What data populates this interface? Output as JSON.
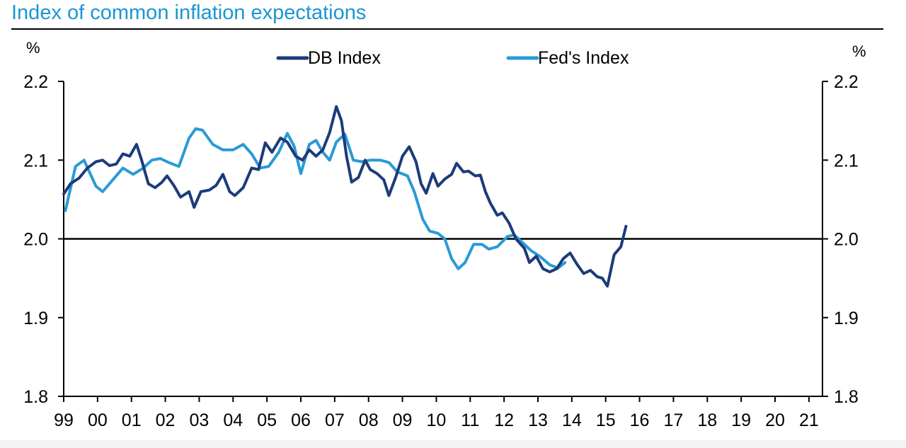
{
  "chart_data": {
    "type": "line",
    "title": "Index of common inflation expectations",
    "left_unit": "%",
    "right_unit": "%",
    "xlim": [
      1999.0,
      2021.4
    ],
    "ylim": [
      1.8,
      2.2
    ],
    "y_ticks": [
      {
        "value": 2.2,
        "label": "2.2"
      },
      {
        "value": 2.1,
        "label": "2.1"
      },
      {
        "value": 2.0,
        "label": "2.0"
      },
      {
        "value": 1.9,
        "label": "1.9"
      },
      {
        "value": 1.8,
        "label": "1.8"
      }
    ],
    "x_ticks": [
      {
        "value": 1999.0,
        "label": "99"
      },
      {
        "value": 2000.0,
        "label": "00"
      },
      {
        "value": 2001.0,
        "label": "01"
      },
      {
        "value": 2002.0,
        "label": "02"
      },
      {
        "value": 2003.0,
        "label": "03"
      },
      {
        "value": 2004.0,
        "label": "04"
      },
      {
        "value": 2005.0,
        "label": "05"
      },
      {
        "value": 2006.0,
        "label": "06"
      },
      {
        "value": 2007.0,
        "label": "07"
      },
      {
        "value": 2008.0,
        "label": "08"
      },
      {
        "value": 2009.0,
        "label": "09"
      },
      {
        "value": 2010.0,
        "label": "10"
      },
      {
        "value": 2011.0,
        "label": "11"
      },
      {
        "value": 2012.0,
        "label": "12"
      },
      {
        "value": 2013.0,
        "label": "13"
      },
      {
        "value": 2014.0,
        "label": "14"
      },
      {
        "value": 2015.0,
        "label": "15"
      },
      {
        "value": 2016.0,
        "label": "16"
      },
      {
        "value": 2017.0,
        "label": "17"
      },
      {
        "value": 2018.0,
        "label": "18"
      },
      {
        "value": 2019.0,
        "label": "19"
      },
      {
        "value": 2020.0,
        "label": "20"
      },
      {
        "value": 2021.0,
        "label": "21"
      }
    ],
    "reference_line": 2.0,
    "series": [
      {
        "name": "DB Index",
        "color": "#1c3b7a",
        "points": [
          [
            1999.0,
            2.057
          ],
          [
            1999.2,
            2.07
          ],
          [
            1999.45,
            2.077
          ],
          [
            1999.7,
            2.09
          ],
          [
            1999.95,
            2.098
          ],
          [
            2000.15,
            2.1
          ],
          [
            2000.35,
            2.093
          ],
          [
            2000.55,
            2.095
          ],
          [
            2000.75,
            2.108
          ],
          [
            2000.95,
            2.105
          ],
          [
            2001.15,
            2.12
          ],
          [
            2001.3,
            2.1
          ],
          [
            2001.5,
            2.07
          ],
          [
            2001.7,
            2.065
          ],
          [
            2001.9,
            2.072
          ],
          [
            2002.05,
            2.08
          ],
          [
            2002.25,
            2.068
          ],
          [
            2002.45,
            2.053
          ],
          [
            2002.7,
            2.06
          ],
          [
            2002.85,
            2.04
          ],
          [
            2003.05,
            2.06
          ],
          [
            2003.3,
            2.062
          ],
          [
            2003.5,
            2.068
          ],
          [
            2003.7,
            2.082
          ],
          [
            2003.9,
            2.06
          ],
          [
            2004.05,
            2.055
          ],
          [
            2004.3,
            2.065
          ],
          [
            2004.55,
            2.09
          ],
          [
            2004.75,
            2.088
          ],
          [
            2004.95,
            2.122
          ],
          [
            2005.15,
            2.11
          ],
          [
            2005.4,
            2.128
          ],
          [
            2005.6,
            2.123
          ],
          [
            2005.85,
            2.105
          ],
          [
            2006.05,
            2.1
          ],
          [
            2006.25,
            2.113
          ],
          [
            2006.45,
            2.105
          ],
          [
            2006.65,
            2.113
          ],
          [
            2006.85,
            2.135
          ],
          [
            2007.05,
            2.168
          ],
          [
            2007.2,
            2.15
          ],
          [
            2007.35,
            2.105
          ],
          [
            2007.5,
            2.072
          ],
          [
            2007.7,
            2.078
          ],
          [
            2007.9,
            2.1
          ],
          [
            2008.05,
            2.088
          ],
          [
            2008.25,
            2.083
          ],
          [
            2008.45,
            2.075
          ],
          [
            2008.6,
            2.055
          ],
          [
            2008.8,
            2.078
          ],
          [
            2009.0,
            2.105
          ],
          [
            2009.2,
            2.117
          ],
          [
            2009.4,
            2.098
          ],
          [
            2009.55,
            2.07
          ],
          [
            2009.7,
            2.058
          ],
          [
            2009.9,
            2.083
          ],
          [
            2010.05,
            2.067
          ],
          [
            2010.25,
            2.076
          ],
          [
            2010.45,
            2.082
          ],
          [
            2010.6,
            2.096
          ],
          [
            2010.8,
            2.085
          ],
          [
            2010.95,
            2.086
          ],
          [
            2011.15,
            2.08
          ],
          [
            2011.3,
            2.081
          ],
          [
            2011.45,
            2.06
          ],
          [
            2011.6,
            2.045
          ],
          [
            2011.8,
            2.03
          ],
          [
            2011.95,
            2.033
          ],
          [
            2012.15,
            2.02
          ],
          [
            2012.35,
            2.0
          ],
          [
            2012.6,
            1.988
          ],
          [
            2012.75,
            1.97
          ],
          [
            2012.95,
            1.978
          ],
          [
            2013.15,
            1.962
          ],
          [
            2013.35,
            1.958
          ],
          [
            2013.55,
            1.962
          ],
          [
            2013.75,
            1.975
          ],
          [
            2013.95,
            1.982
          ],
          [
            2014.15,
            1.968
          ],
          [
            2014.35,
            1.956
          ],
          [
            2014.55,
            1.96
          ],
          [
            2014.75,
            1.952
          ],
          [
            2014.9,
            1.95
          ],
          [
            2015.05,
            1.94
          ],
          [
            2015.25,
            1.98
          ],
          [
            2015.45,
            1.99
          ],
          [
            2015.6,
            2.016
          ]
        ]
      },
      {
        "name": "Fed's Index",
        "color": "#2a9ad6",
        "points": [
          [
            1999.05,
            2.036
          ],
          [
            1999.35,
            2.092
          ],
          [
            1999.6,
            2.1
          ],
          [
            1999.95,
            2.067
          ],
          [
            2000.15,
            2.06
          ],
          [
            2000.45,
            2.075
          ],
          [
            2000.75,
            2.09
          ],
          [
            2001.05,
            2.082
          ],
          [
            2001.35,
            2.09
          ],
          [
            2001.6,
            2.1
          ],
          [
            2001.85,
            2.102
          ],
          [
            2002.1,
            2.097
          ],
          [
            2002.4,
            2.092
          ],
          [
            2002.7,
            2.128
          ],
          [
            2002.9,
            2.14
          ],
          [
            2003.1,
            2.138
          ],
          [
            2003.4,
            2.12
          ],
          [
            2003.7,
            2.113
          ],
          [
            2004.0,
            2.113
          ],
          [
            2004.3,
            2.12
          ],
          [
            2004.55,
            2.108
          ],
          [
            2004.8,
            2.09
          ],
          [
            2005.05,
            2.092
          ],
          [
            2005.35,
            2.11
          ],
          [
            2005.6,
            2.134
          ],
          [
            2005.8,
            2.118
          ],
          [
            2006.0,
            2.083
          ],
          [
            2006.25,
            2.12
          ],
          [
            2006.45,
            2.125
          ],
          [
            2006.65,
            2.11
          ],
          [
            2006.85,
            2.1
          ],
          [
            2007.05,
            2.123
          ],
          [
            2007.3,
            2.133
          ],
          [
            2007.55,
            2.1
          ],
          [
            2007.8,
            2.098
          ],
          [
            2008.05,
            2.1
          ],
          [
            2008.35,
            2.1
          ],
          [
            2008.6,
            2.097
          ],
          [
            2008.85,
            2.085
          ],
          [
            2009.15,
            2.08
          ],
          [
            2009.35,
            2.06
          ],
          [
            2009.6,
            2.025
          ],
          [
            2009.8,
            2.01
          ],
          [
            2010.05,
            2.007
          ],
          [
            2010.25,
            2.0
          ],
          [
            2010.45,
            1.975
          ],
          [
            2010.65,
            1.962
          ],
          [
            2010.85,
            1.97
          ],
          [
            2011.1,
            1.993
          ],
          [
            2011.35,
            1.993
          ],
          [
            2011.55,
            1.987
          ],
          [
            2011.8,
            1.99
          ],
          [
            2012.1,
            2.003
          ],
          [
            2012.3,
            2.005
          ],
          [
            2012.55,
            1.995
          ],
          [
            2012.8,
            1.985
          ],
          [
            2013.05,
            1.978
          ],
          [
            2013.35,
            1.967
          ],
          [
            2013.6,
            1.963
          ],
          [
            2013.8,
            1.97
          ]
        ]
      }
    ]
  }
}
